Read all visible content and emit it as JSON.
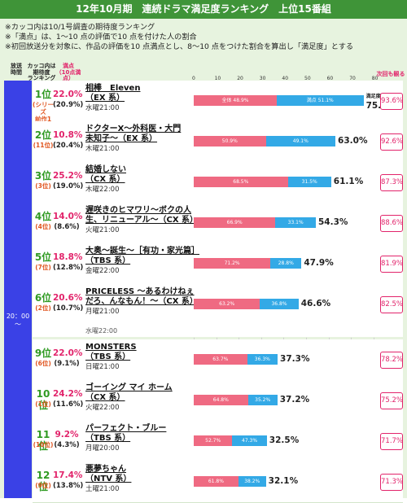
{
  "header": {
    "title": "12年10月期　連続ドラマ満足度ランキング　上位15番組"
  },
  "notes": [
    "※カッコ内は10/1号調査の期待度ランキング",
    "※「満点」は、1〜10 点の評価で10 点を付けた人の割合",
    "※初回放送分を対象に、作品の評価を10 点満点とし、8〜10 点をつけた割合を算出し「満足度」とする"
  ],
  "columns": {
    "time": "放送\n時間",
    "rank": "カッコ内は\n期待度\nランキング",
    "full_marks": "満点\n（10点満点）",
    "expectation": "次回も観る"
  },
  "time_label": "20：00\n〜",
  "partial_row_text": "水曜22:00",
  "chart_data": {
    "type": "bar",
    "title": "12年10月期　連続ドラマ満足度ランキング　上位15番組",
    "xlabel": "",
    "ylabel": "",
    "xlim": [
      0,
      100
    ],
    "ticks": [
      "0",
      "10",
      "20",
      "30",
      "40",
      "50",
      "60",
      "70",
      "80（%）"
    ],
    "stack_labels": [
      "全体",
      "満点"
    ],
    "end_label": "満足度",
    "rows": [
      {
        "rank": "1位",
        "prev": "(シリーズ\n前作1位)",
        "pct": "22.0%",
        "pct2": "(20.9%)",
        "title": "相棒　Eleven\n（EX 系）",
        "slot": "水曜21:00",
        "seg1": 48.9,
        "seg2": 51.1,
        "seg1_label": "全体 48.9%",
        "seg2_label": "満点 51.1%",
        "total": "75.5%",
        "total_val": 75.5,
        "exp": "93.6%"
      },
      {
        "rank": "2位",
        "prev": "(11位)",
        "pct": "10.8%",
        "pct2": "(20.4%)",
        "title": "ドクターX〜外科医・大門\n未知子〜（EX 系）",
        "slot": "木曜21:00",
        "seg1": 50.9,
        "seg2": 49.1,
        "seg1_label": "50.9%",
        "seg2_label": "49.1%",
        "total": "63.0%",
        "total_val": 63.0,
        "exp": "92.6%"
      },
      {
        "rank": "3位",
        "prev": "(3位)",
        "pct": "25.2%",
        "pct2": "(19.0%)",
        "title": "結婚しない\n（CX 系）",
        "slot": "木曜22:00",
        "seg1": 68.5,
        "seg2": 31.5,
        "seg1_label": "68.5%",
        "seg2_label": "31.5%",
        "total": "61.1%",
        "total_val": 61.1,
        "exp": "87.3%"
      },
      {
        "rank": "4位",
        "prev": "(4位)",
        "pct": "14.0%",
        "pct2": "(8.6%)",
        "title": "遅咲きのヒマワリ〜ボクの人\n生、リニューアル〜（CX 系）",
        "slot": "火曜21:00",
        "seg1": 66.9,
        "seg2": 33.1,
        "seg1_label": "66.9%",
        "seg2_label": "33.1%",
        "total": "54.3%",
        "total_val": 54.3,
        "exp": "88.6%"
      },
      {
        "rank": "5位",
        "prev": "(7位)",
        "pct": "18.8%",
        "pct2": "(12.8%)",
        "title": "大奥〜誕生〜［有功・家光篇］\n（TBS 系）",
        "slot": "金曜22:00",
        "seg1": 71.2,
        "seg2": 28.8,
        "seg1_label": "71.2%",
        "seg2_label": "28.8%",
        "total": "47.9%",
        "total_val": 47.9,
        "exp": "81.9%"
      },
      {
        "rank": "6位",
        "prev": "(2位)",
        "pct": "20.6%",
        "pct2": "(10.7%)",
        "title": "PRICELESS 〜あるわけねぇ\nだろ、んなもん！〜（CX 系）",
        "slot": "月曜21:00",
        "seg1": 63.2,
        "seg2": 36.8,
        "seg1_label": "63.2%",
        "seg2_label": "36.8%",
        "total": "46.6%",
        "total_val": 46.6,
        "exp": "82.5%"
      },
      {
        "rank": "9位",
        "prev": "(6位)",
        "pct": "22.0%",
        "pct2": "(9.1%)",
        "title": "MONSTERS\n（TBS 系）",
        "slot": "日曜21:00",
        "seg1": 63.7,
        "seg2": 36.3,
        "seg1_label": "63.7%",
        "seg2_label": "36.3%",
        "total": "37.3%",
        "total_val": 37.3,
        "exp": "78.2%"
      },
      {
        "rank": "10位",
        "prev": "(1位)",
        "pct": "24.2%",
        "pct2": "(11.6%)",
        "title": "ゴーイング マイ ホーム\n（CX 系）",
        "slot": "火曜22:00",
        "seg1": 64.8,
        "seg2": 35.2,
        "seg1_label": "64.8%",
        "seg2_label": "35.2%",
        "total": "37.2%",
        "total_val": 37.2,
        "exp": "75.2%"
      },
      {
        "rank": "11位",
        "prev": "(10位)",
        "pct": "9.2%",
        "pct2": "(4.3%)",
        "title": "パーフェクト・ブルー\n（TBS 系）",
        "slot": "月曜20:00",
        "seg1": 52.7,
        "seg2": 47.3,
        "seg1_label": "52.7%",
        "seg2_label": "47.3%",
        "total": "32.5%",
        "total_val": 32.5,
        "exp": "71.7%"
      },
      {
        "rank": "12位",
        "prev": "(9位)",
        "pct": "17.4%",
        "pct2": "(13.8%)",
        "title": "悪夢ちゃん\n（NTV 系）",
        "slot": "土曜21:00",
        "seg1": 61.8,
        "seg2": 38.2,
        "seg1_label": "61.8%",
        "seg2_label": "38.2%",
        "total": "32.1%",
        "total_val": 32.1,
        "exp": "71.3%"
      }
    ]
  }
}
